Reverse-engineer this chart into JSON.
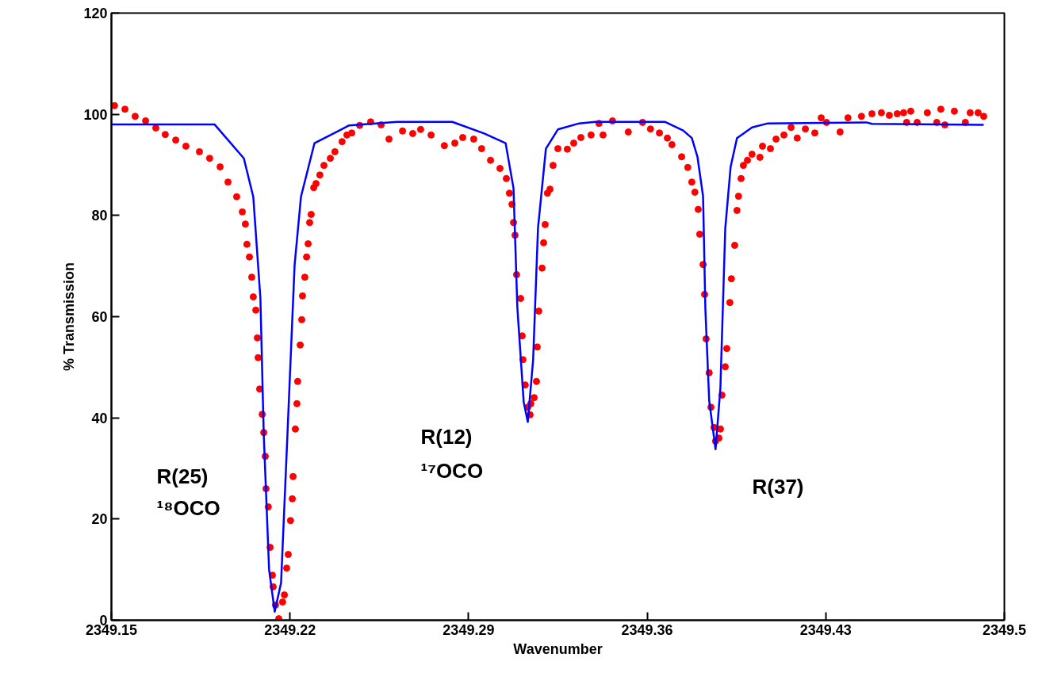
{
  "chart_data": {
    "type": "line",
    "xlabel": "Wavenumber",
    "ylabel": "% Transmission",
    "xlim": [
      2349.15,
      2349.5
    ],
    "xticks": [
      2349.15,
      2349.22,
      2349.29,
      2349.36,
      2349.43,
      2349.5
    ],
    "ylim": [
      0,
      120
    ],
    "yticks": [
      0,
      20,
      40,
      60,
      80,
      100,
      120
    ],
    "grid": false,
    "series": [
      {
        "type": "scatter",
        "marker": "circle",
        "color": "#ff0000",
        "x": [
          2349.1512,
          2349.1553,
          2349.1593,
          2349.1634,
          2349.1674,
          2349.1711,
          2349.1752,
          2349.1792,
          2349.1845,
          2349.1885,
          2349.1926,
          2349.1957,
          2349.1991,
          2349.2013,
          2349.2025,
          2349.2031,
          2349.2041,
          2349.205,
          2349.2056,
          2349.2066,
          2349.2072,
          2349.2075,
          2349.2081,
          2349.2091,
          2349.2097,
          2349.2103,
          2349.2106,
          2349.2115,
          2349.2122,
          2349.2131,
          2349.2134,
          2349.2143,
          2349.2156,
          2349.2171,
          2349.2178,
          2349.2187,
          2349.2193,
          2349.2202,
          2349.2209,
          2349.2212,
          2349.2221,
          2349.2227,
          2349.223,
          2349.224,
          2349.2246,
          2349.2249,
          2349.2258,
          2349.2265,
          2349.2271,
          2349.2277,
          2349.2283,
          2349.2293,
          2349.2302,
          2349.2317,
          2349.2333,
          2349.2358,
          2349.2376,
          2349.2404,
          2349.2423,
          2349.2442,
          2349.2473,
          2349.2516,
          2349.2557,
          2349.2588,
          2349.2641,
          2349.2681,
          2349.2712,
          2349.2753,
          2349.2805,
          2349.2846,
          2349.2877,
          2349.292,
          2349.2951,
          2349.2986,
          2349.3023,
          2349.3048,
          2349.306,
          2349.307,
          2349.3076,
          2349.3082,
          2349.3088,
          2349.3104,
          2349.311,
          2349.3113,
          2349.3122,
          2349.3132,
          2349.3141,
          2349.3144,
          2349.3157,
          2349.3166,
          2349.3169,
          2349.3175,
          2349.3188,
          2349.3194,
          2349.32,
          2349.3209,
          2349.3219,
          2349.3231,
          2349.325,
          2349.3287,
          2349.3312,
          2349.334,
          2349.338,
          2349.3411,
          2349.3427,
          2349.3464,
          2349.3526,
          2349.3582,
          2349.3613,
          2349.3648,
          2349.3679,
          2349.3697,
          2349.3735,
          2349.3759,
          2349.3775,
          2349.3787,
          2349.38,
          2349.3806,
          2349.3819,
          2349.3825,
          2349.3831,
          2349.3843,
          2349.385,
          2349.3862,
          2349.3868,
          2349.3881,
          2349.3887,
          2349.3893,
          2349.3906,
          2349.3912,
          2349.3924,
          2349.393,
          2349.3943,
          2349.3952,
          2349.3958,
          2349.3968,
          2349.3977,
          2349.3993,
          2349.4011,
          2349.4042,
          2349.4052,
          2349.4083,
          2349.4105,
          2349.4136,
          2349.4164,
          2349.4188,
          2349.422,
          2349.4257,
          2349.4282,
          2349.4303,
          2349.4356,
          2349.4387,
          2349.444,
          2349.4481,
          2349.4518,
          2349.4549,
          2349.458,
          2349.4605,
          2349.4617,
          2349.4633,
          2349.4658,
          2349.4698,
          2349.4735,
          2349.4751,
          2349.4767,
          2349.4804,
          2349.4847,
          2349.4866,
          2349.4897,
          2349.4919
        ],
        "values": [
          101.7,
          101.0,
          99.6,
          98.7,
          97.3,
          96.0,
          94.9,
          93.7,
          92.6,
          91.3,
          89.6,
          86.6,
          83.7,
          80.7,
          78.3,
          74.3,
          71.8,
          67.8,
          63.9,
          61.3,
          55.8,
          51.9,
          45.7,
          40.7,
          37.1,
          32.4,
          26.0,
          22.4,
          14.4,
          8.9,
          6.6,
          3.0,
          0.3,
          3.6,
          5.0,
          10.3,
          13.0,
          19.7,
          24.0,
          28.4,
          37.8,
          42.8,
          47.2,
          54.4,
          59.4,
          64.1,
          67.8,
          71.8,
          74.4,
          78.6,
          80.2,
          85.5,
          86.3,
          88.0,
          89.9,
          91.3,
          92.6,
          94.6,
          95.9,
          96.3,
          97.8,
          98.5,
          97.9,
          95.1,
          96.7,
          96.2,
          97.0,
          95.9,
          93.8,
          94.3,
          95.4,
          95.1,
          93.2,
          90.9,
          89.3,
          87.3,
          84.4,
          82.2,
          78.6,
          76.1,
          68.3,
          63.6,
          56.2,
          51.5,
          46.5,
          42.1,
          40.6,
          42.8,
          44.0,
          47.2,
          54.0,
          61.1,
          69.6,
          74.6,
          78.2,
          84.4,
          85.2,
          89.9,
          93.2,
          93.1,
          94.3,
          95.4,
          95.9,
          98.2,
          95.9,
          98.7,
          96.5,
          98.4,
          97.1,
          96.3,
          95.3,
          94.0,
          91.6,
          89.5,
          86.6,
          84.6,
          81.2,
          76.3,
          70.3,
          64.4,
          55.6,
          48.9,
          42.1,
          38.1,
          35.4,
          36.0,
          37.8,
          44.5,
          50.1,
          53.7,
          62.8,
          67.5,
          74.1,
          81.0,
          83.8,
          87.3,
          89.9,
          90.9,
          92.1,
          91.5,
          93.7,
          93.2,
          95.1,
          95.9,
          97.4,
          95.3,
          97.1,
          96.3,
          99.3,
          98.4,
          96.5,
          99.3,
          99.6,
          100.1,
          100.3,
          99.8,
          100.1,
          100.3,
          98.4,
          100.6,
          98.4,
          100.3,
          98.4,
          101.0,
          97.9,
          100.6,
          98.4,
          100.3,
          100.3,
          99.6
        ]
      },
      {
        "marker": "none",
        "line_style": "solid",
        "color": "#0000ff",
        "x": [
          2349.15,
          2349.1904,
          2349.2019,
          2349.2056,
          2349.2084,
          2349.2097,
          2349.2118,
          2349.214,
          2349.2165,
          2349.219,
          2349.2218,
          2349.2243,
          2349.2296,
          2349.2401,
          2349.2432,
          2349.2619,
          2349.2836,
          2349.2961,
          2349.3045,
          2349.3076,
          2349.3091,
          2349.3116,
          2349.3132,
          2349.3153,
          2349.3172,
          2349.3203,
          2349.325,
          2349.3334,
          2349.3396,
          2349.3669,
          2349.3741,
          2349.3775,
          2349.3797,
          2349.3819,
          2349.3828,
          2349.3843,
          2349.3868,
          2349.3887,
          2349.3906,
          2349.3927,
          2349.3952,
          2349.4011,
          2349.4073,
          2349.4459,
          2349.4481,
          2349.4919
        ],
        "values": [
          98.0,
          98.0,
          91.3,
          83.7,
          63.6,
          36.8,
          10.0,
          1.7,
          7.4,
          36.8,
          70.2,
          83.7,
          94.3,
          97.0,
          97.8,
          98.5,
          98.5,
          96.2,
          94.3,
          85.4,
          61.9,
          43.1,
          39.2,
          51.5,
          77.5,
          93.2,
          97.0,
          98.2,
          98.5,
          98.5,
          96.8,
          95.3,
          91.6,
          83.8,
          61.6,
          43.4,
          33.8,
          45.9,
          77.4,
          89.6,
          95.3,
          97.4,
          98.2,
          98.4,
          98.1,
          97.9
        ]
      }
    ],
    "annotations": [
      "R(25)",
      "¹⁸OCO",
      "R(12)",
      "¹⁷OCO",
      "R(37)"
    ]
  }
}
